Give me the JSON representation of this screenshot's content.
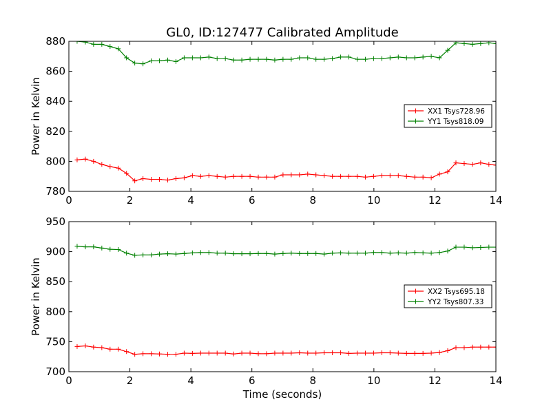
{
  "figure": {
    "title": "GL0, ID:127477 Calibrated Amplitude"
  },
  "chart_data": [
    {
      "type": "line",
      "title": "GL0, ID:127477 Calibrated Amplitude",
      "xlabel": "",
      "ylabel": "Power in Kelvin",
      "xlim": [
        0,
        14
      ],
      "ylim": [
        780,
        880
      ],
      "xticks": [
        0,
        2,
        4,
        6,
        8,
        10,
        12,
        14
      ],
      "yticks": [
        780,
        800,
        820,
        840,
        860,
        880
      ],
      "grid": false,
      "legend_position": "right",
      "x": [
        0.27,
        0.54,
        0.81,
        1.08,
        1.35,
        1.62,
        1.89,
        2.16,
        2.43,
        2.7,
        2.97,
        3.24,
        3.51,
        3.78,
        4.05,
        4.32,
        4.59,
        4.86,
        5.13,
        5.4,
        5.67,
        5.94,
        6.21,
        6.48,
        6.75,
        7.02,
        7.29,
        7.56,
        7.83,
        8.1,
        8.37,
        8.64,
        8.91,
        9.18,
        9.45,
        9.72,
        9.99,
        10.26,
        10.53,
        10.8,
        11.07,
        11.34,
        11.61,
        11.88,
        12.15,
        12.42,
        12.69,
        12.96,
        13.23,
        13.5,
        13.77,
        14.0
      ],
      "series": [
        {
          "name": "XX1 Tsys728.96",
          "color": "#ff0000",
          "values": [
            801,
            801.5,
            800,
            798,
            796.5,
            795.5,
            792,
            787,
            788.5,
            788,
            788,
            787.5,
            788.5,
            789,
            790.5,
            790,
            790.5,
            790,
            789.5,
            790,
            790,
            790,
            789.5,
            789.5,
            789.5,
            791,
            791,
            791,
            791.5,
            791,
            790.5,
            790,
            790,
            790,
            790,
            789.5,
            790,
            790.5,
            790.5,
            790.5,
            790,
            789.5,
            789.5,
            789,
            791.5,
            793,
            799,
            798.5,
            798,
            799,
            798,
            797.5
          ]
        },
        {
          "name": "YY1 Tsys818.09",
          "color": "#008000",
          "values": [
            880,
            879.5,
            878,
            878,
            876.5,
            875,
            869,
            865.5,
            865,
            867,
            867,
            867.5,
            866.5,
            869,
            869,
            869,
            869.5,
            868.5,
            868.5,
            867.5,
            867.5,
            868,
            868,
            868,
            867.5,
            868,
            868,
            869,
            869,
            868,
            868,
            868.5,
            869.5,
            869.5,
            868,
            868,
            868.5,
            868.5,
            869,
            869.5,
            869,
            869,
            869.5,
            870,
            869,
            874,
            879,
            878.5,
            878,
            878.5,
            879,
            878.5
          ]
        }
      ]
    },
    {
      "type": "line",
      "title": "",
      "xlabel": "Time (seconds)",
      "ylabel": "Power in Kelvin",
      "xlim": [
        0,
        14
      ],
      "ylim": [
        700,
        950
      ],
      "xticks": [
        0,
        2,
        4,
        6,
        8,
        10,
        12,
        14
      ],
      "yticks": [
        700,
        750,
        800,
        850,
        900,
        950
      ],
      "grid": false,
      "legend_position": "right",
      "x": [
        0.27,
        0.54,
        0.81,
        1.08,
        1.35,
        1.62,
        1.89,
        2.16,
        2.43,
        2.7,
        2.97,
        3.24,
        3.51,
        3.78,
        4.05,
        4.32,
        4.59,
        4.86,
        5.13,
        5.4,
        5.67,
        5.94,
        6.21,
        6.48,
        6.75,
        7.02,
        7.29,
        7.56,
        7.83,
        8.1,
        8.37,
        8.64,
        8.91,
        9.18,
        9.45,
        9.72,
        9.99,
        10.26,
        10.53,
        10.8,
        11.07,
        11.34,
        11.61,
        11.88,
        12.15,
        12.42,
        12.69,
        12.96,
        13.23,
        13.5,
        13.77,
        14.0
      ],
      "series": [
        {
          "name": "XX2 Tsys695.18",
          "color": "#ff0000",
          "values": [
            742,
            743,
            741,
            740,
            737.5,
            737.5,
            733.5,
            729,
            730,
            730,
            729.5,
            729,
            729,
            731,
            730.5,
            731,
            731,
            731,
            731,
            729.5,
            731,
            731,
            730,
            730,
            731,
            731,
            731,
            731.5,
            731,
            731,
            731.5,
            731.5,
            731.5,
            730.5,
            731,
            731,
            731,
            731.5,
            731.5,
            731,
            730.5,
            730.5,
            730.5,
            731,
            732,
            735,
            740,
            740,
            741,
            741,
            741,
            741
          ]
        },
        {
          "name": "YY2 Tsys807.33",
          "color": "#008000",
          "values": [
            909,
            908,
            908,
            906,
            904,
            903.5,
            897.5,
            894,
            894.5,
            894.5,
            896,
            896.5,
            896,
            897,
            898,
            898.5,
            898.5,
            897.5,
            897.5,
            896.5,
            896.5,
            896.5,
            897,
            897,
            896,
            897,
            897.5,
            897,
            897,
            897,
            896,
            897.5,
            898,
            897.5,
            897.5,
            897.5,
            898.5,
            898.5,
            897.5,
            898,
            897.5,
            898.5,
            898,
            897.5,
            898.5,
            901,
            907.5,
            907.5,
            906.5,
            907,
            907.5,
            907.5
          ]
        }
      ]
    }
  ]
}
